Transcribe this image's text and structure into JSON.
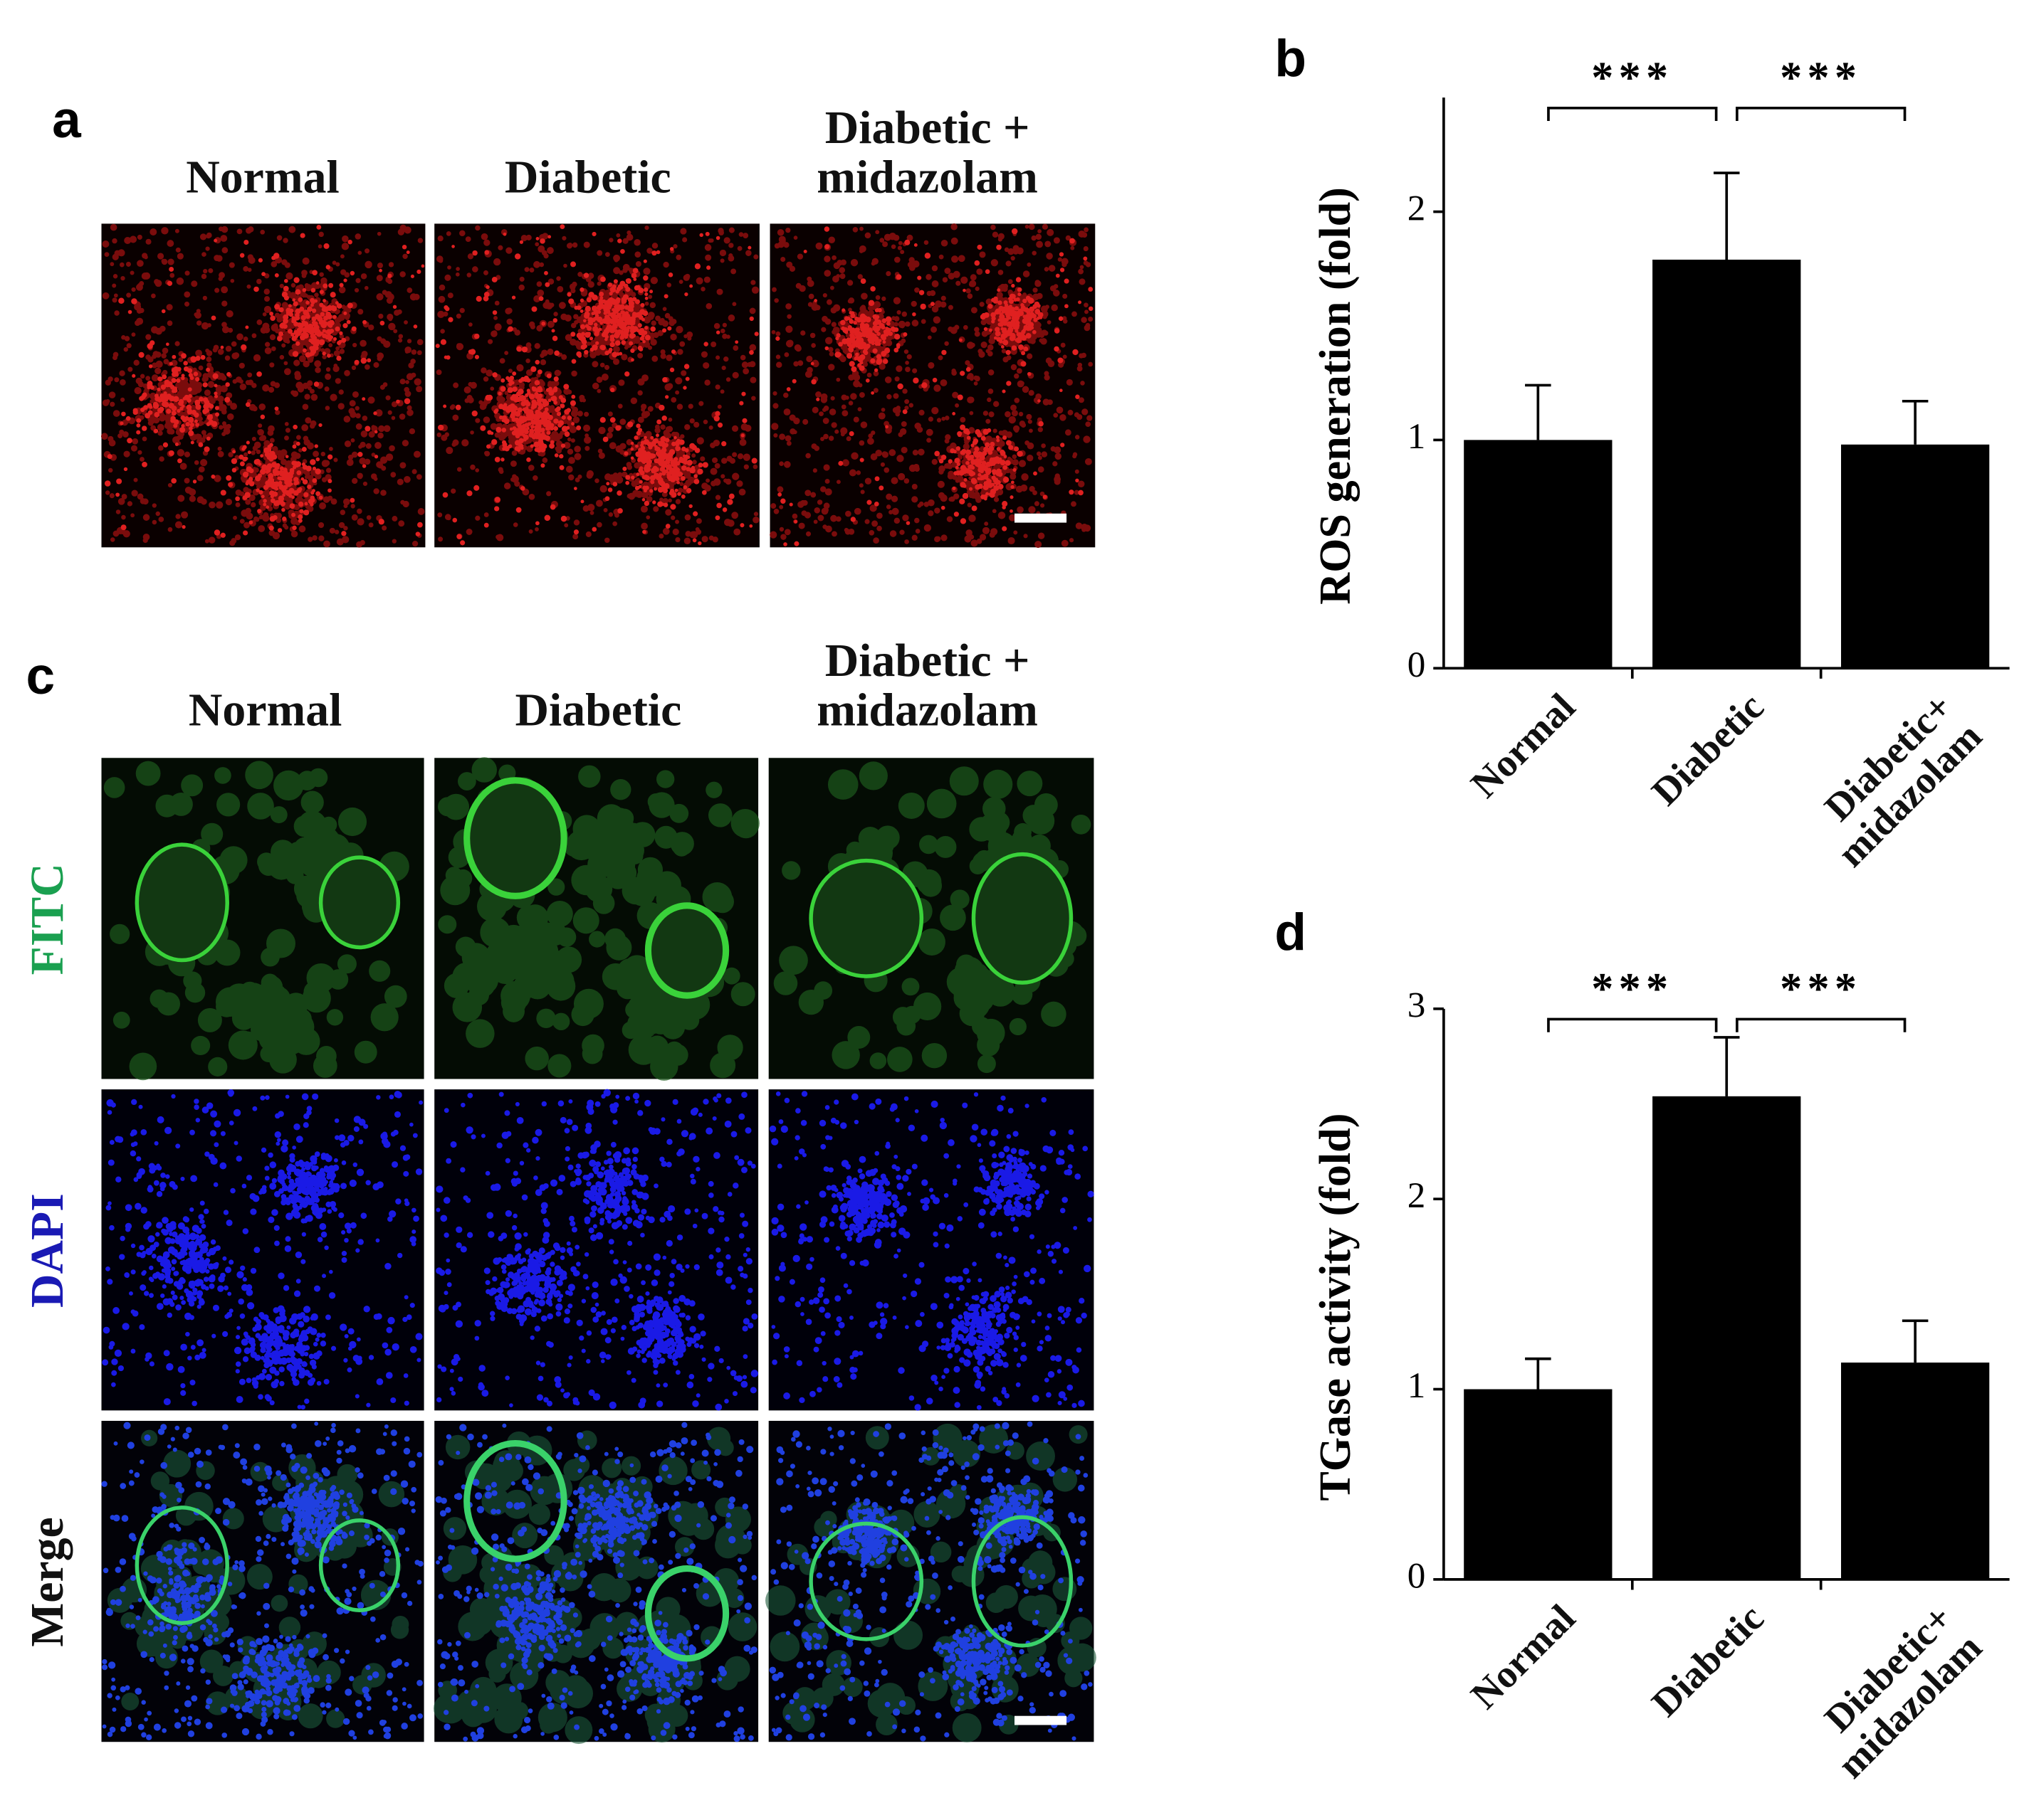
{
  "panel_a": {
    "letter": "a",
    "columns": [
      "Normal",
      "Diabetic",
      "Diabetic + midazolam"
    ]
  },
  "panel_c": {
    "letter": "c",
    "columns": [
      "Normal",
      "Diabetic",
      "Diabetic + midazolam"
    ],
    "rows": [
      "FITC",
      "DAPI",
      "Merge"
    ]
  },
  "chart_data": [
    {
      "type": "bar",
      "letter": "b",
      "y_label": "ROS generation (fold)",
      "categories": [
        "Normal",
        "Diabetic",
        "Diabetic+ midazolam"
      ],
      "values": [
        1.0,
        1.79,
        0.98
      ],
      "errors": [
        0.24,
        0.38,
        0.19
      ],
      "ylim": [
        0,
        2.5
      ],
      "yticks": [
        0,
        1,
        2
      ],
      "color": "#000000",
      "annotations": [
        "***",
        "***"
      ]
    },
    {
      "type": "bar",
      "letter": "d",
      "y_label": "TGase activity (fold)",
      "categories": [
        "Normal",
        "Diabetic",
        "Diabetic+ midazolam"
      ],
      "values": [
        1.0,
        2.54,
        1.14
      ],
      "errors": [
        0.16,
        0.31,
        0.22
      ],
      "ylim": [
        0,
        3
      ],
      "yticks": [
        0,
        1,
        2,
        3
      ],
      "color": "#000000",
      "annotations": [
        "***",
        "***"
      ]
    }
  ]
}
